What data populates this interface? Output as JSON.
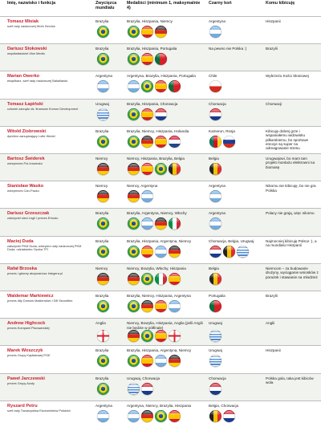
{
  "headers": {
    "person": "Imię, nazwisko i funkcja",
    "winner": "Zwycięzca mundialu",
    "medalists": "Medaliści (minimum 1, maksymalnie 4)",
    "dark_horse": "Czarny koń",
    "cheer": "Komu kibicuję"
  },
  "flag_colors": {
    "Brazylia": "#2f9e44",
    "Argentyna": "#74acdf",
    "Hiszpania": "#d62027",
    "Niemcy": "#222222",
    "Portugalia": "#0b6e3a",
    "Holandia": "#c8102e",
    "Włochy": "#009246",
    "Belgia": "#f2c200",
    "Urugwaj": "#4e8bd1",
    "Chorwacja": "#cc1f2e",
    "Anglia": "#ffffff",
    "Chile": "#0033a0",
    "Rosja": "#d52b1e",
    "Kamerun": "#007a5e"
  },
  "rows": [
    {
      "name": "Tomasz Misiak",
      "role": "szef rady nadzorczej Work Service",
      "winner": "Brazylia",
      "winner_flags": [
        "Brazylia"
      ],
      "medalists": "Brazylia, Hiszpania, Niemcy",
      "medal_flags": [
        "Brazylia",
        "Hiszpania",
        "Niemcy"
      ],
      "dark_horse": "Argentyna",
      "dark_flags": [
        "Argentyna"
      ],
      "cheer": "Hiszpanii"
    },
    {
      "name": "Dariusz Stokowski",
      "role": "współwłaściciel 4fun Media",
      "winner": "Brazylia",
      "winner_flags": [
        "Brazylia"
      ],
      "medalists": "Brazylia, Hiszpania, Portugalia",
      "medal_flags": [
        "Brazylia",
        "Hiszpania",
        "Portugalia"
      ],
      "dark_horse": "Na pewno nie Polska :)",
      "dark_flags": [],
      "cheer": "Brazylii"
    },
    {
      "name": "Marian Owerko",
      "role": "ekspiłkarz, szef rady nadzorczej Bakallandu",
      "winner": "Argentyna",
      "winner_flags": [
        "Argentyna"
      ],
      "medalists": "Argentyna, Brazylia, Hiszpania, Portugalia",
      "medal_flags": [
        "Argentyna",
        "Brazylia",
        "Hiszpania",
        "Portugalia"
      ],
      "dark_horse": "Chile",
      "dark_flags": [
        "Chile"
      ],
      "cheer": "Wybrzeżu Kości Słoniowej"
    },
    {
      "name": "Tomasz Łapiński",
      "role": "członek zarządu ds. finansów Komon Development",
      "winner": "Urugwaj",
      "winner_flags": [
        "Urugwaj"
      ],
      "medalists": "Brazylia, Hiszpania, Chorwacja",
      "medal_flags": [
        "Brazylia",
        "Hiszpania",
        "Chorwacja"
      ],
      "dark_horse": "Chorwacja",
      "dark_flags": [
        "Chorwacja"
      ],
      "cheer": "Chorwacji"
    },
    {
      "name": "Witold Ziobrowski",
      "role": "dyrektor zarządzający Lotte Wedel",
      "winner": "Brazylia",
      "winner_flags": [
        "Brazylia"
      ],
      "medalists": "Brazylia, Niemcy, Hiszpania, Holandia",
      "medal_flags": [
        "Brazylia",
        "Niemcy",
        "Hiszpania",
        "Holandia"
      ],
      "dark_horse": "Kamerun, Rosja",
      "dark_flags": [
        "Kamerun",
        "Rosja"
      ],
      "cheer": "Kibicuję dobrej grze i wspaniałemu widowisku piłkarskiemu, bo sportowe emocje są super na odreagowanie stresu"
    },
    {
      "name": "Bartosz Świderek",
      "role": "wiceprezes Pol-Inowesku",
      "winner": "Niemcy",
      "winner_flags": [
        "Niemcy"
      ],
      "medalists": "Niemcy, Hiszpania, Brazylia, Belgia",
      "medal_flags": [
        "Niemcy",
        "Hiszpania",
        "Brazylia",
        "Belgia"
      ],
      "dark_horse": "Belgia",
      "dark_flags": [
        "Belgia"
      ],
      "cheer": "Urugwajowi, bo mam tam projekt montażu elektrowni na biomasę"
    },
    {
      "name": "Stanisław Wasko",
      "role": "wiceprezes Can-Packu",
      "winner": "Niemcy",
      "winner_flags": [
        "Niemcy"
      ],
      "medalists": "Niemcy, Argentyna",
      "medal_flags": [
        "Niemcy",
        "Argentyna"
      ],
      "dark_horse": "Argentyna",
      "dark_flags": [
        "Argentyna"
      ],
      "cheer": "Nikomu nie kibicuję, bo nie gra Polska"
    },
    {
      "name": "Dariusz Grzeszczak",
      "role": "założyciel sieci Legli i prezes Erbudu",
      "winner": "Brazylia",
      "winner_flags": [
        "Brazylia"
      ],
      "medalists": "Brazylia, Argentyna, Niemcy, Włochy",
      "medal_flags": [
        "Brazylia",
        "Argentyna",
        "Niemcy",
        "Włochy"
      ],
      "dark_horse": "Argentyna",
      "dark_flags": [
        "Argentyna"
      ],
      "cheer": "Polacy nie grają, więc nikomu"
    },
    {
      "name": "Maciej Duda",
      "role": "założyciel PKM Duda, wiceprez rady nadzorczej PKM Duda, udziałowiec Opoka TFI",
      "winner": "Brazylia",
      "winner_flags": [
        "Brazylia"
      ],
      "medalists": "Brazylia, Hiszpania, Argentyna, Niemcy",
      "medal_flags": [
        "Brazylia",
        "Hiszpania",
        "Argentyna",
        "Niemcy"
      ],
      "dark_horse": "Chorwacja, Belgia, Urugwaj",
      "dark_flags": [
        "Chorwacja",
        "Belgia",
        "Urugwaj"
      ],
      "cheer": "Najmocniej kibicuję Polsce :), a na mundialu Hiszpanii"
    },
    {
      "name": "Rafał Brzoska",
      "role": "prezes i główny akcjonariusz Integera.pl",
      "winner": "Niemcy",
      "winner_flags": [
        "Niemcy"
      ],
      "medalists": "Niemcy, Brazylia, Włochy, Hiszpania",
      "medal_flags": [
        "Niemcy",
        "Brazylia",
        "Włochy",
        "Hiszpania"
      ],
      "dark_horse": "Belgia",
      "dark_flags": [
        "Belgia"
      ],
      "cheer": "Niemcom – za budowanie drużyny, wyciąganie wniosków z porażek i stawianie na młodzież"
    },
    {
      "name": "Waldemar Markiewicz",
      "role": "prezes Idły Domów Maklerskich i DB Securities",
      "winner": "Brazylia",
      "winner_flags": [
        "Brazylia"
      ],
      "medalists": "Brazylia, Niemcy, Hiszpania, Argentyna",
      "medal_flags": [
        "Brazylia",
        "Niemcy",
        "Hiszpania",
        "Argentyna"
      ],
      "dark_horse": "Portugalia",
      "dark_flags": [
        "Portugalia"
      ],
      "cheer": "Brazylii"
    },
    {
      "name": "Andrew Highcock",
      "role": "prezes Kompanii Piwowarskiej",
      "winner": "Anglia",
      "winner_flags": [
        "Anglia"
      ],
      "medalists": "Niemcy, Brazylia, Hiszpania, Anglia (jeśli Anglii nie będzie w półfinale)",
      "medal_flags": [
        "Niemcy",
        "Brazylia",
        "Hiszpania",
        "Anglia"
      ],
      "dark_horse": "Urugwaj",
      "dark_flags": [
        "Urugwaj"
      ],
      "cheer": "Anglii"
    },
    {
      "name": "Marek Woszczyk",
      "role": "prezes Grupy Kapitałowej PGE",
      "winner": "Brazylia",
      "winner_flags": [
        "Brazylia"
      ],
      "medalists": "Brazylia, Hiszpania, Argentyna, Niemcy",
      "medal_flags": [
        "Brazylia",
        "Hiszpania",
        "Argentyna",
        "Niemcy"
      ],
      "dark_horse": "Urugwaj",
      "dark_flags": [
        "Urugwaj"
      ],
      "cheer": "Hiszpanii"
    },
    {
      "name": "Paweł Jarczewski",
      "role": "prezes Grupy Azoty",
      "winner": "Brazylia",
      "winner_flags": [
        "Brazylia"
      ],
      "medalists": "Urugwaj, Chorwacja",
      "medal_flags": [
        "Urugwaj",
        "Chorwacja"
      ],
      "dark_horse": "Chorwacja",
      "dark_flags": [
        "Chorwacja"
      ],
      "cheer": "Polska gola, taka jest kibiców wola"
    },
    {
      "name": "Ryszard Petru",
      "role": "szef rady Towarzystwa Ekonomistów Polskich",
      "winner": "Argentyna",
      "winner_flags": [
        "Argentyna"
      ],
      "medalists": "Argentyna, Niemcy, Brazylia, Hiszpania",
      "medal_flags": [
        "Argentyna",
        "Niemcy",
        "Brazylia",
        "Hiszpania"
      ],
      "dark_horse": "Belgia, Chorwacja",
      "dark_flags": [
        "Belgia",
        "Chorwacja"
      ],
      "cheer": ""
    }
  ]
}
